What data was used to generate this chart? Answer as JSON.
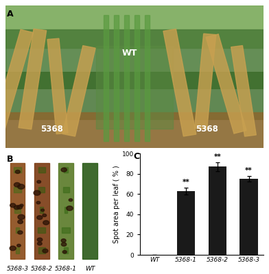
{
  "title_A": "A",
  "title_B": "B",
  "title_C": "C",
  "bar_categories": [
    "WT",
    "5368-1",
    "5368-2",
    "5368-3"
  ],
  "bar_values": [
    0,
    63,
    87,
    75
  ],
  "bar_errors": [
    0,
    3.5,
    4.5,
    3.0
  ],
  "bar_color": "#1a1a1a",
  "ylabel": "Spot area per leaf ( % )",
  "ylim": [
    0,
    100
  ],
  "yticks": [
    0,
    20,
    40,
    60,
    80,
    100
  ],
  "significance": [
    "",
    "**",
    "**",
    "**"
  ],
  "background_color": "#ffffff",
  "panel_label_fontsize": 9,
  "axis_fontsize": 7,
  "tick_fontsize": 6.5,
  "sig_fontsize": 7.5,
  "photo_A_bg": "#5a7a48",
  "photo_A_soil": "#8a6830",
  "photo_A_mid": "#4a6a38",
  "photo_A_top": "#6a9a50",
  "leaf_strip_colors": [
    "#7a4a1a",
    "#6a3a10",
    "#4a6a2a",
    "#2a5a1a"
  ],
  "leaf_strip_spot_color": "#3a1a05",
  "leaf_strip_bg": "#d8d0c8"
}
